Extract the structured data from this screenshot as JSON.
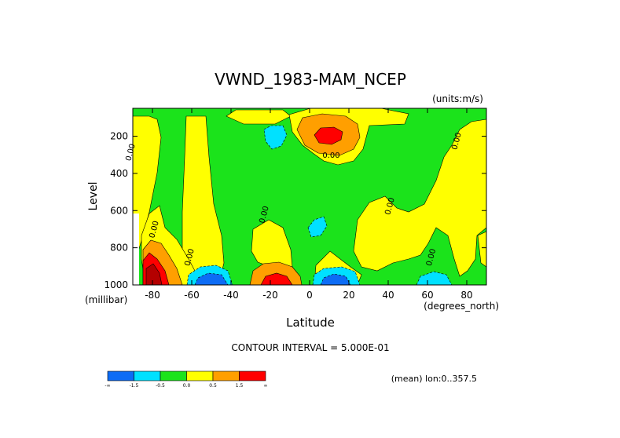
{
  "chart_data": {
    "type": "contour",
    "title": "VWND_1983-MAM_NCEP",
    "units": "(units:m/s)",
    "xlabel": "Latitude",
    "x_unit": "(degrees_north)",
    "ylabel": "Level",
    "y_unit": "(millibar)",
    "xlim": [
      -90,
      90
    ],
    "ylim": [
      1000,
      50
    ],
    "y_inverted": true,
    "x_ticks": [
      "-80",
      "-60",
      "-40",
      "-20",
      "0",
      "20",
      "40",
      "60",
      "80"
    ],
    "x_tick_values": [
      -80,
      -60,
      -40,
      -20,
      0,
      20,
      40,
      60,
      80
    ],
    "y_ticks": [
      "200",
      "400",
      "600",
      "800",
      "1000"
    ],
    "y_tick_values": [
      200,
      400,
      600,
      800,
      1000
    ],
    "contour_interval_text": "CONTOUR INTERVAL = 5.000E-01",
    "mean_text": "(mean) lon:0..357.5",
    "contour_labels": [
      {
        "text": "0.00",
        "lat": -90,
        "level": 290
      },
      {
        "text": "0.00",
        "lat": 11,
        "level": 315
      },
      {
        "text": "0.00",
        "lat": 76,
        "level": 230
      },
      {
        "text": "0.00",
        "lat": -22,
        "level": 625
      },
      {
        "text": "0.00",
        "lat": 42,
        "level": 580
      },
      {
        "text": "0.00",
        "lat": -78,
        "level": 705
      },
      {
        "text": "0.00",
        "lat": -60,
        "level": 855
      },
      {
        "text": "0.00",
        "lat": 63,
        "level": 855
      }
    ],
    "features": [
      {
        "lat": 10,
        "level": 160,
        "value": 2.0,
        "sign": "positive"
      },
      {
        "lat": -18,
        "level": 970,
        "value": 1.8,
        "sign": "positive"
      },
      {
        "lat": -87,
        "level": 960,
        "value": 2.0,
        "sign": "positive"
      },
      {
        "lat": -52,
        "level": 975,
        "value": -1.8,
        "sign": "negative"
      },
      {
        "lat": 8,
        "level": 975,
        "value": -1.6,
        "sign": "negative"
      },
      {
        "lat": -17,
        "level": 175,
        "value": -0.8,
        "sign": "negative"
      },
      {
        "lat": 2,
        "level": 650,
        "value": -0.8,
        "sign": "negative"
      },
      {
        "lat": 60,
        "level": 980,
        "value": -0.7,
        "sign": "negative"
      }
    ],
    "colorbar": {
      "labels": [
        "-∞",
        "-1.5",
        "-0.5",
        "0.0",
        "0.5",
        "1.5",
        "∞"
      ],
      "colors": [
        "#0d6cf5",
        "#00e1ff",
        "#1be31b",
        "#ffff00",
        "#ff9f00",
        "#ff0000"
      ]
    },
    "colors": {
      "neg2": "#0d6cf5",
      "neg1": "#00e1ff",
      "neutral": "#1be31b",
      "pos1": "#ffff00",
      "pos2": "#ff9f00",
      "pos3": "#ff0000",
      "pos4": "#b40000"
    }
  }
}
